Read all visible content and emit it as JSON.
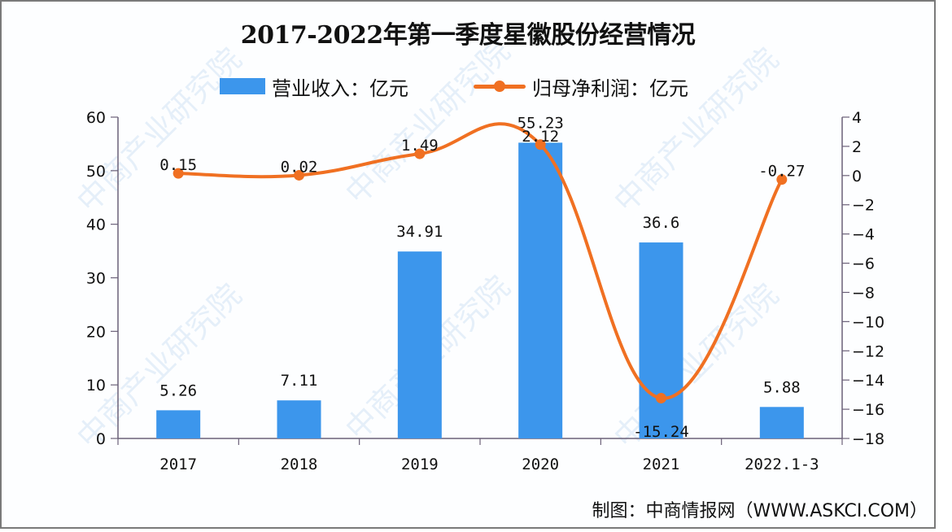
{
  "title": "2017-2022年第一季度星徽股份经营情况",
  "legend": {
    "bar_label": "营业收入：亿元",
    "line_label": "归母净利润：亿元"
  },
  "footer": "制图：中商情报网（WWW.ASKCI.COM）",
  "watermark": "中商产业研究院",
  "colors": {
    "bar": "#3c96ec",
    "line": "#f07022",
    "axis": "#6b6078"
  },
  "chart_data": {
    "type": "bar+line",
    "title": "2017-2022年第一季度星徽股份经营情况",
    "categories": [
      "2017",
      "2018",
      "2019",
      "2020",
      "2021",
      "2022.1-3"
    ],
    "series": [
      {
        "name": "营业收入：亿元",
        "type": "bar",
        "axis": "left",
        "values": [
          5.26,
          7.11,
          34.91,
          55.23,
          36.6,
          5.88
        ]
      },
      {
        "name": "归母净利润：亿元",
        "type": "line",
        "axis": "right",
        "values": [
          0.15,
          0.02,
          1.49,
          2.12,
          -15.24,
          -0.27
        ]
      }
    ],
    "left_axis": {
      "ylim": [
        0,
        60
      ],
      "ticks": [
        0,
        10,
        20,
        30,
        40,
        50,
        60
      ]
    },
    "right_axis": {
      "ylim": [
        -18,
        4
      ],
      "ticks": [
        4,
        2,
        0,
        -2,
        -4,
        -6,
        -8,
        -10,
        -12,
        -14,
        -16,
        -18
      ]
    },
    "legend_position": "top",
    "grid": false
  }
}
